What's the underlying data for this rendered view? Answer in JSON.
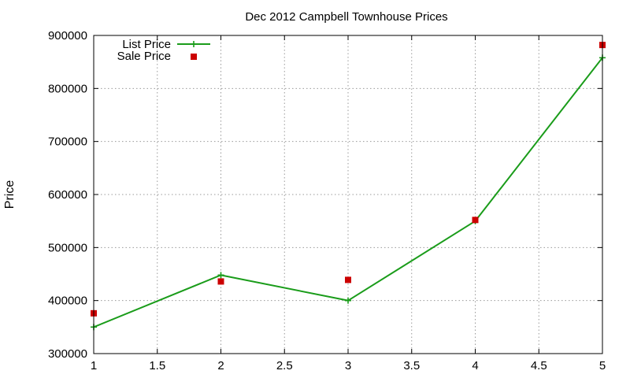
{
  "chart_data": {
    "type": "line",
    "title": "Dec 2012 Campbell Townhouse Prices",
    "xlabel": "",
    "ylabel": "Price",
    "xlim": [
      1,
      5
    ],
    "ylim": [
      300000,
      900000
    ],
    "xticks": [
      1,
      1.5,
      2,
      2.5,
      3,
      3.5,
      4,
      4.5,
      5
    ],
    "yticks": [
      300000,
      400000,
      500000,
      600000,
      700000,
      800000,
      900000
    ],
    "xtick_labels": [
      "1",
      "1.5",
      "2",
      "2.5",
      "3",
      "3.5",
      "4",
      "4.5",
      "5"
    ],
    "ytick_labels": [
      "300000",
      "400000",
      "500000",
      "600000",
      "700000",
      "800000",
      "900000"
    ],
    "grid": true,
    "legend_position": "top-left",
    "series": [
      {
        "name": "List Price",
        "style": "line+cross",
        "color": "#1a9c1a",
        "x": [
          1,
          2,
          3,
          4,
          5
        ],
        "values": [
          350000,
          448000,
          400000,
          550000,
          858000
        ]
      },
      {
        "name": "Sale Price",
        "style": "square-points",
        "color": "#cc0000",
        "x": [
          1,
          2,
          3,
          4,
          5
        ],
        "values": [
          376000,
          436000,
          439000,
          552000,
          882000
        ]
      }
    ]
  }
}
